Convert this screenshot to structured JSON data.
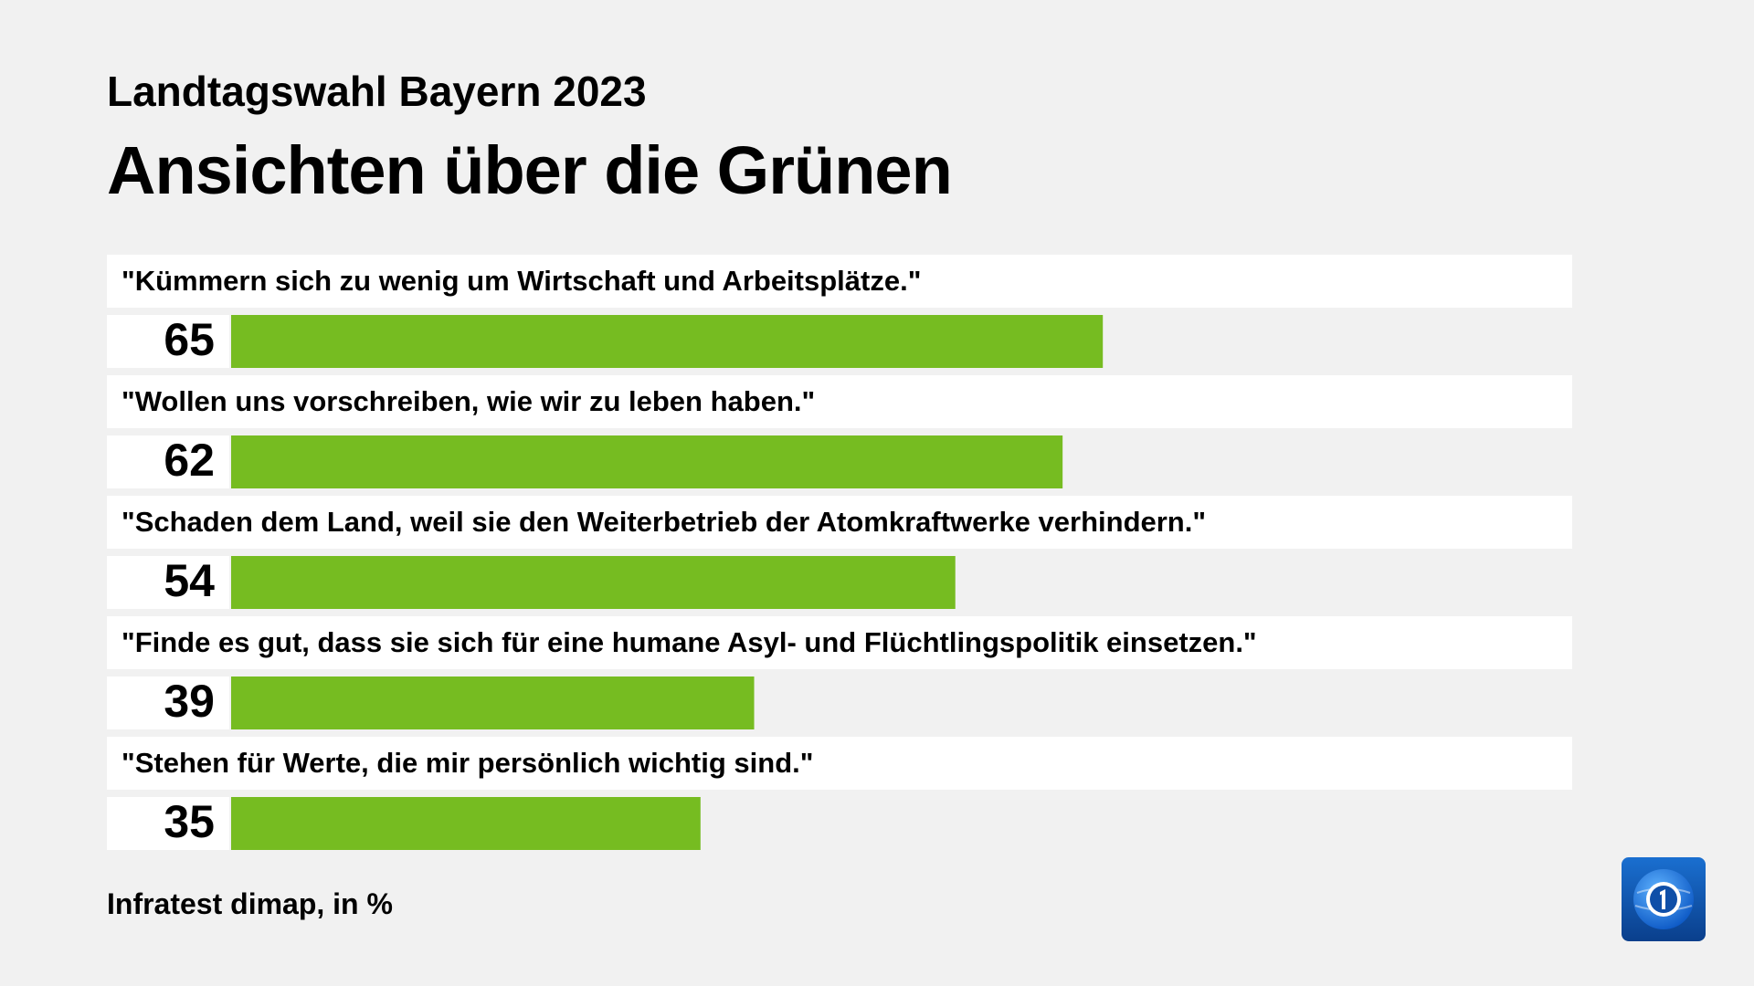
{
  "header": {
    "subtitle": "Landtagswahl Bayern 2023",
    "title": "Ansichten über die Grünen"
  },
  "footer": {
    "source": "Infratest dimap, in %"
  },
  "logo": {
    "icon": "ard-tagesschau-logo-icon"
  },
  "colors": {
    "background": "#f1f1f1",
    "row_background": "#ffffff",
    "bar": "#76bc21",
    "text": "#000000",
    "logo_blue": "#0f4fa8"
  },
  "chart_data": {
    "type": "bar",
    "orientation": "horizontal",
    "title": "Ansichten über die Grünen",
    "subtitle": "Landtagswahl Bayern 2023",
    "categories": [
      "\"Kümmern sich zu wenig um Wirtschaft und Arbeitsplätze.\"",
      "\"Wollen uns vorschreiben, wie wir zu leben haben.\"",
      "\"Schaden dem Land, weil sie den Weiterbetrieb der Atomkraftwerke verhindern.\"",
      "\"Finde es gut, dass sie sich für eine humane Asyl- und Flüchtlingspolitik einsetzen.\"",
      "\"Stehen für Werte, die mir persönlich wichtig sind.\""
    ],
    "values": [
      65,
      62,
      54,
      39,
      35
    ],
    "xlim": [
      0,
      100
    ],
    "unit": "%",
    "grid": false,
    "legend": "none",
    "source": "Infratest dimap, in %"
  }
}
